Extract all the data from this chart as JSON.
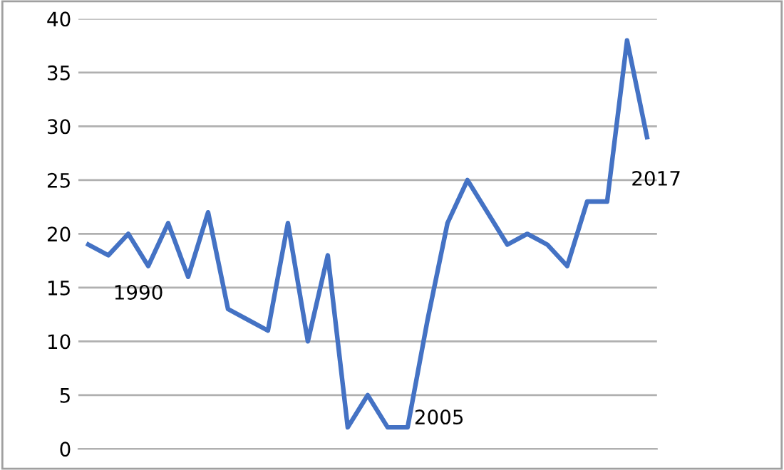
{
  "chart_data": {
    "type": "line",
    "categories": [
      null,
      null,
      null,
      null,
      null,
      null,
      null,
      null,
      null,
      null,
      null,
      null,
      null,
      null,
      null,
      null,
      null,
      null,
      null,
      null,
      null,
      null,
      null,
      null,
      null,
      null,
      null,
      null,
      null
    ],
    "series": [
      {
        "color": "#4472c4",
        "values": [
          19,
          18,
          20,
          17,
          21,
          16,
          22,
          13,
          12,
          11,
          21,
          10,
          18,
          2,
          5,
          2,
          2,
          12,
          21,
          25,
          22,
          19,
          20,
          19,
          17,
          23,
          23,
          38,
          29
        ]
      }
    ],
    "ylim": [
      0,
      40
    ],
    "yticks": [
      0,
      5,
      10,
      15,
      20,
      25,
      30,
      35,
      40
    ],
    "grid": "y",
    "marker": "none",
    "line_style": "solid",
    "annotations": [
      "1990",
      "2005",
      "2017"
    ]
  }
}
